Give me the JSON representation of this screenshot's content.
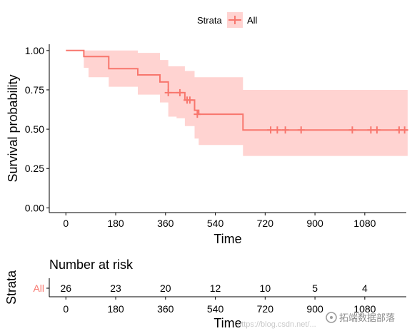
{
  "colors": {
    "curve": "#F8766D",
    "band": "#FFD3D1",
    "axis": "#000000",
    "watermark": "#c9c9c9",
    "watermark_brand": "#8a8a8a"
  },
  "legend": {
    "title": "Strata",
    "entries": [
      "All"
    ],
    "position": "top"
  },
  "chart_data": [
    {
      "type": "line",
      "subtype": "kaplan-meier-step",
      "xlabel": "Time",
      "ylabel": "Survival probability",
      "xlim": [
        -60,
        1230
      ],
      "ylim": [
        -0.03,
        1.04
      ],
      "xticks": [
        0,
        180,
        360,
        540,
        720,
        900,
        1080
      ],
      "xtick_labels": [
        "0",
        "180",
        "360",
        "540",
        "720",
        "900",
        "1080"
      ],
      "yticks": [
        0,
        0.25,
        0.5,
        0.75,
        1.0
      ],
      "ytick_labels": [
        "0.00",
        "0.25",
        "0.50",
        "0.75",
        "1.00"
      ],
      "grid": false,
      "series": [
        {
          "name": "All",
          "step_times": [
            0,
            65,
            82,
            155,
            260,
            340,
            370,
            400,
            430,
            465,
            480,
            640,
            1235
          ],
          "survival": [
            1.0,
            0.962,
            0.962,
            0.885,
            0.845,
            0.8,
            0.732,
            0.732,
            0.685,
            0.62,
            0.595,
            0.495,
            0.495
          ],
          "ci_lower": [
            1.0,
            0.89,
            0.83,
            0.77,
            0.72,
            0.67,
            0.58,
            0.57,
            0.52,
            0.44,
            0.4,
            0.33,
            0.33
          ],
          "ci_upper": [
            1.0,
            1.0,
            1.0,
            1.0,
            0.985,
            0.94,
            0.9,
            0.9,
            0.87,
            0.83,
            0.83,
            0.75,
            0.75
          ],
          "censor_times": [
            370,
            412,
            438,
            448,
            475,
            740,
            764,
            793,
            850,
            1035,
            1102,
            1124,
            1204,
            1224
          ],
          "censor_survival": [
            0.732,
            0.732,
            0.685,
            0.685,
            0.595,
            0.495,
            0.495,
            0.495,
            0.495,
            0.495,
            0.495,
            0.495,
            0.495,
            0.495
          ]
        }
      ]
    },
    {
      "type": "table",
      "title": "Number at risk",
      "ylabel": "Strata",
      "xlabel": "Time",
      "row_labels": [
        "All"
      ],
      "times": [
        0,
        180,
        360,
        540,
        720,
        900,
        1080
      ],
      "xtick_labels": [
        "0",
        "180",
        "360",
        "540",
        "720",
        "900",
        "1080"
      ],
      "values": [
        [
          26,
          23,
          20,
          12,
          10,
          5,
          4
        ]
      ]
    }
  ],
  "watermark": {
    "url": "https://blog.csdn.net/...",
    "brand": "拓端数据部落"
  }
}
